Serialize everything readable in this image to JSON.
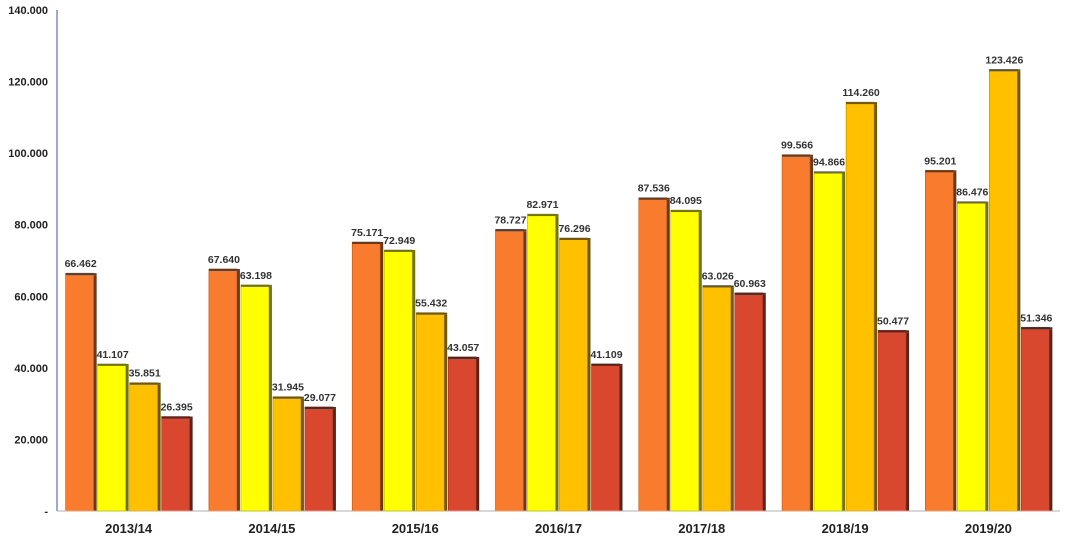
{
  "chart_data": {
    "type": "bar",
    "categories": [
      "2013/14",
      "2014/15",
      "2015/16",
      "2016/17",
      "2017/18",
      "2018/19",
      "2019/20"
    ],
    "series": [
      {
        "color": "#F97B2E",
        "values": [
          66.462,
          67.64,
          75.171,
          78.727,
          87.536,
          99.566,
          95.201
        ]
      },
      {
        "color": "#FFFF00",
        "values": [
          41.107,
          63.198,
          72.949,
          82.971,
          84.095,
          94.866,
          86.476
        ]
      },
      {
        "color": "#FFC000",
        "values": [
          35.851,
          31.945,
          55.432,
          76.296,
          63.026,
          114.26,
          123.426
        ]
      },
      {
        "color": "#D9472F",
        "values": [
          26.395,
          29.077,
          43.057,
          41.109,
          60.963,
          50.477,
          51.346
        ]
      }
    ],
    "data_labels": [
      [
        "66.462",
        "41.107",
        "35.851",
        "26.395"
      ],
      [
        "67.640",
        "63.198",
        "31.945",
        "29.077"
      ],
      [
        "75.171",
        "72.949",
        "55.432",
        "43.057"
      ],
      [
        "78.727",
        "82.971",
        "76.296",
        "41.109"
      ],
      [
        "87.536",
        "84.095",
        "63.026",
        "60.963"
      ],
      [
        "99.566",
        "94.866",
        "114.260",
        "50.477"
      ],
      [
        "95.201",
        "86.476",
        "123.426",
        "51.346"
      ]
    ],
    "yticks": [
      0,
      20,
      40,
      60,
      80,
      100,
      120,
      140
    ],
    "ytick_labels": [
      "-",
      "20.000",
      "40.000",
      "60.000",
      "80.000",
      "100.000",
      "120.000",
      "140.000"
    ],
    "ylim": [
      0,
      140
    ],
    "grid": false,
    "legend": "none",
    "title": "",
    "xlabel": "",
    "ylabel": ""
  }
}
